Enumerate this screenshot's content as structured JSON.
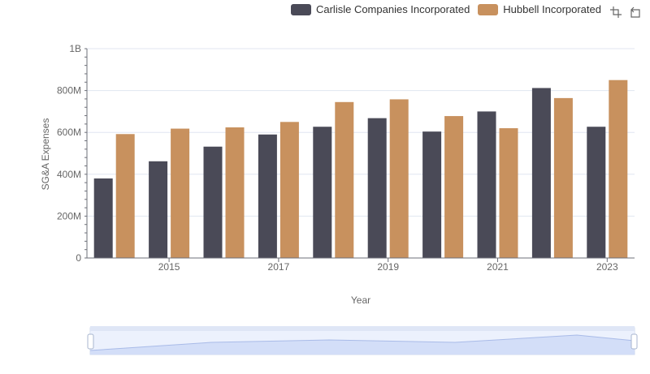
{
  "legend": {
    "items": [
      {
        "label": "Carlisle Companies Incorporated",
        "color": "#4a4a57"
      },
      {
        "label": "Hubbell Incorporated",
        "color": "#c8915e"
      }
    ]
  },
  "toolbox": {
    "icons": [
      "zoom-icon",
      "restore-icon"
    ]
  },
  "chart_data": {
    "type": "bar",
    "xlabel": "Year",
    "ylabel": "SG&A Expenses",
    "categories": [
      "2014",
      "2015",
      "2016",
      "2017",
      "2018",
      "2019",
      "2020",
      "2021",
      "2022",
      "2023"
    ],
    "x_tick_labels": [
      "2015",
      "2017",
      "2019",
      "2021",
      "2023"
    ],
    "y_tick_labels": [
      "0",
      "200M",
      "400M",
      "600M",
      "800M",
      "1B"
    ],
    "ylim": [
      0,
      1000000000
    ],
    "grid": true,
    "legend_position": "top-right",
    "series": [
      {
        "name": "Carlisle Companies Incorporated",
        "color": "#4a4a57",
        "values": [
          380000000,
          462000000,
          532000000,
          590000000,
          627000000,
          668000000,
          604000000,
          700000000,
          812000000,
          627000000
        ]
      },
      {
        "name": "Hubbell Incorporated",
        "color": "#c8915e",
        "values": [
          592000000,
          618000000,
          624000000,
          650000000,
          745000000,
          758000000,
          678000000,
          620000000,
          764000000,
          850000000
        ]
      }
    ]
  }
}
